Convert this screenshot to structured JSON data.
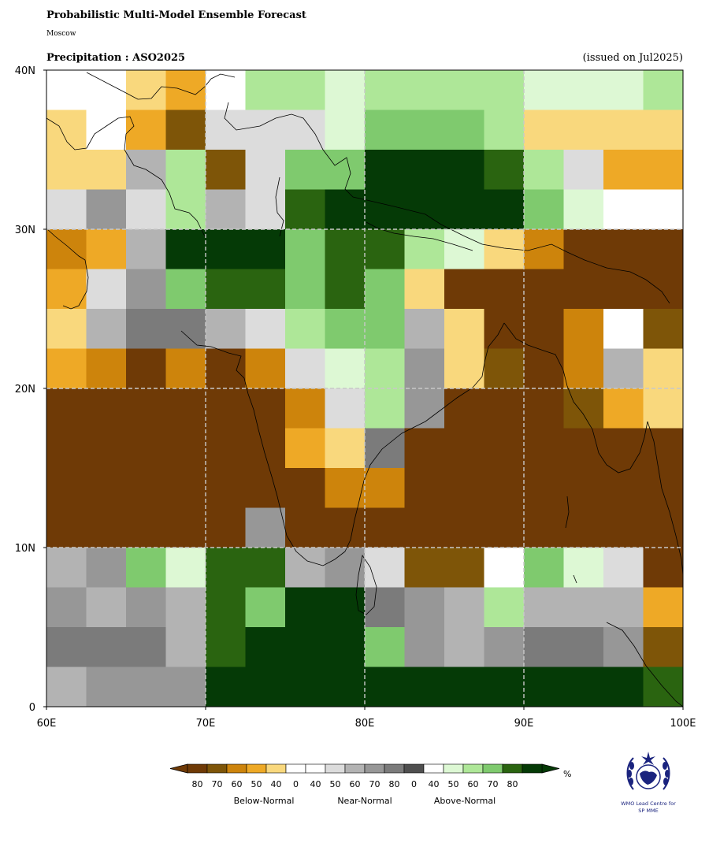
{
  "header": {
    "title": "Probabilistic Multi-Model Ensemble Forecast",
    "subtitle": "Moscow",
    "variable": "Precipitation : ASO2025",
    "issued": "(issued on Jul2025)"
  },
  "map": {
    "lon_range": [
      60,
      100
    ],
    "lat_range": [
      0,
      40
    ],
    "cell_size_deg": 2.5,
    "x_ticks": [
      "60E",
      "70E",
      "80E",
      "90E",
      "100E"
    ],
    "y_ticks": [
      "0",
      "10N",
      "20N",
      "30N",
      "40N"
    ],
    "gridlines": "dashed, every 10 degrees",
    "category_colors": {
      "W": "#ffffff",
      "B8": "#6f3a06",
      "B7": "#7e5508",
      "B6": "#cd840c",
      "B5": "#eea926",
      "B4": "#f9d87d",
      "N4": "#dcdcdc",
      "N5": "#b3b3b3",
      "N6": "#979797",
      "N7": "#7b7b7b",
      "A4": "#ddf8d4",
      "A5": "#aee798",
      "A6": "#7fca6e",
      "A7": "#2a6410",
      "A8": "#053a06"
    },
    "grid_rows_north_to_south": [
      [
        "W",
        "W",
        "B4",
        "B5",
        "W",
        "A5",
        "A5",
        "A4",
        "A5",
        "A5",
        "A5",
        "A5",
        "A4",
        "A4",
        "A4",
        "A5"
      ],
      [
        "B4",
        "W",
        "B5",
        "B7",
        "N4",
        "N4",
        "N4",
        "A4",
        "A6",
        "A6",
        "A6",
        "A5",
        "B4",
        "B4",
        "B4",
        "B4"
      ],
      [
        "B4",
        "B4",
        "N5",
        "A5",
        "B7",
        "N4",
        "A6",
        "A6",
        "A8",
        "A8",
        "A8",
        "A7",
        "A5",
        "N4",
        "B5",
        "B5"
      ],
      [
        "N4",
        "N6",
        "N4",
        "A5",
        "N5",
        "N4",
        "A7",
        "A8",
        "A8",
        "A8",
        "A8",
        "A8",
        "A6",
        "A4",
        "W",
        "W"
      ],
      [
        "B6",
        "B5",
        "N5",
        "A8",
        "A8",
        "A8",
        "A6",
        "A7",
        "A7",
        "A5",
        "A4",
        "B4",
        "B6",
        "B8",
        "B8",
        "B8"
      ],
      [
        "B5",
        "N4",
        "N6",
        "A6",
        "A7",
        "A7",
        "A6",
        "A7",
        "A6",
        "B4",
        "B8",
        "B8",
        "B8",
        "B8",
        "B8",
        "B8"
      ],
      [
        "B4",
        "N5",
        "N7",
        "N7",
        "N5",
        "N4",
        "A5",
        "A6",
        "A6",
        "N5",
        "B4",
        "B8",
        "B8",
        "B6",
        "W",
        "B7"
      ],
      [
        "B5",
        "B6",
        "B8",
        "B6",
        "B8",
        "B6",
        "N4",
        "A4",
        "A5",
        "N6",
        "B4",
        "B7",
        "B8",
        "B6",
        "N5",
        "B4"
      ],
      [
        "B8",
        "B8",
        "B8",
        "B8",
        "B8",
        "B8",
        "B6",
        "N4",
        "A5",
        "N6",
        "B8",
        "B8",
        "B8",
        "B7",
        "B5",
        "B4"
      ],
      [
        "B8",
        "B8",
        "B8",
        "B8",
        "B8",
        "B8",
        "B5",
        "B4",
        "N7",
        "B8",
        "B8",
        "B8",
        "B8",
        "B8",
        "B8",
        "B8"
      ],
      [
        "B8",
        "B8",
        "B8",
        "B8",
        "B8",
        "B8",
        "B8",
        "B6",
        "B6",
        "B8",
        "B8",
        "B8",
        "B8",
        "B8",
        "B8",
        "B8"
      ],
      [
        "B8",
        "B8",
        "B8",
        "B8",
        "B8",
        "N6",
        "B8",
        "B8",
        "B8",
        "B8",
        "B8",
        "B8",
        "B8",
        "B8",
        "B8",
        "B8"
      ],
      [
        "N5",
        "N6",
        "A6",
        "A4",
        "A7",
        "A7",
        "N5",
        "N6",
        "N4",
        "B7",
        "B7",
        "W",
        "A6",
        "A4",
        "N4",
        "B8"
      ],
      [
        "N6",
        "N5",
        "N6",
        "N5",
        "A7",
        "A6",
        "A8",
        "A8",
        "N7",
        "N6",
        "N5",
        "A5",
        "N5",
        "N5",
        "N5",
        "B5"
      ],
      [
        "N7",
        "N7",
        "N7",
        "N5",
        "A7",
        "A8",
        "A8",
        "A8",
        "A6",
        "N6",
        "N5",
        "N6",
        "N7",
        "N7",
        "N6",
        "B7"
      ],
      [
        "N5",
        "N6",
        "N6",
        "N6",
        "A8",
        "A8",
        "A8",
        "A8",
        "A8",
        "A8",
        "A8",
        "A8",
        "A8",
        "A8",
        "A8",
        "A7"
      ]
    ]
  },
  "legend": {
    "swatches": [
      "B8",
      "B7",
      "B6",
      "B5",
      "B4",
      "W",
      "W",
      "N4",
      "N5",
      "N6",
      "N7",
      "N8",
      "W",
      "A4",
      "A5",
      "A6",
      "A7",
      "A8"
    ],
    "extra_colors": {
      "N8": "#4f4f4f"
    },
    "tick_labels": [
      "80",
      "70",
      "60",
      "50",
      "40",
      "0",
      "40",
      "50",
      "60",
      "70",
      "80",
      "0",
      "40",
      "50",
      "60",
      "70",
      "80"
    ],
    "unit": "%",
    "groups": [
      "Below-Normal",
      "Near-Normal",
      "Above-Normal"
    ]
  },
  "logo": {
    "caption_line1": "WMO Lead Centre for",
    "caption_line2": "SP MME"
  }
}
